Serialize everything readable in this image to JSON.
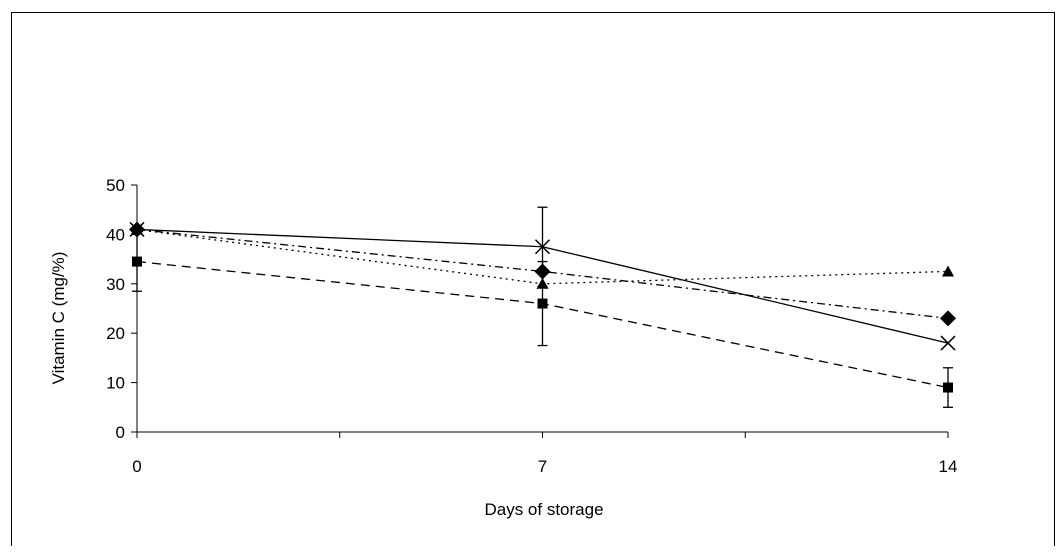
{
  "chart_data": {
    "type": "line",
    "title": "",
    "xlabel": "Days of storage",
    "ylabel": "Vitamin C (mg/%)",
    "x": [
      0,
      7,
      14
    ],
    "x_ticks": [
      "0",
      "7",
      "14"
    ],
    "y_ticks": [
      "0",
      "10",
      "20",
      "30",
      "40",
      "50"
    ],
    "ylim": [
      0,
      50
    ],
    "grid": false,
    "legend": "none",
    "series": [
      {
        "marker": "square",
        "line": "dashed",
        "color": "#000000",
        "values": [
          34.5,
          26.0,
          9.0
        ],
        "errors": [
          6.0,
          8.5,
          4.0
        ]
      },
      {
        "marker": "triangle",
        "line": "dotted",
        "color": "#000000",
        "values": [
          41.0,
          30.0,
          32.5
        ],
        "errors": [
          0.5,
          0.8,
          0.8
        ]
      },
      {
        "marker": "diamond",
        "line": "dash-dot",
        "color": "#000000",
        "values": [
          41.0,
          32.5,
          23.0
        ],
        "errors": [
          0.5,
          0.8,
          0.5
        ]
      },
      {
        "marker": "x",
        "line": "solid",
        "color": "#000000",
        "values": [
          41.0,
          37.5,
          18.0
        ],
        "errors": [
          0.5,
          8.0,
          0.5
        ]
      }
    ]
  }
}
